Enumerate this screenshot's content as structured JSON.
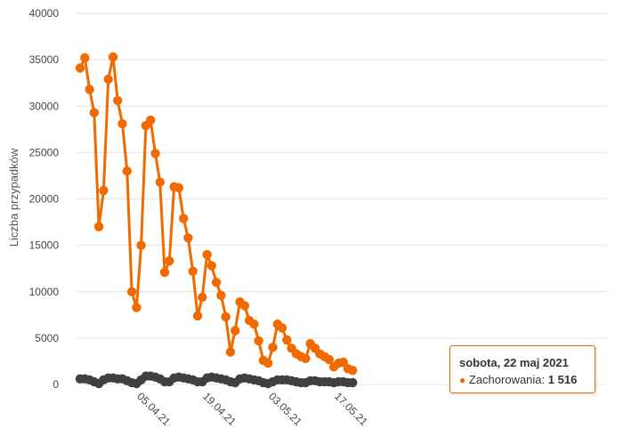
{
  "chart_data": {
    "type": "line",
    "ylabel": "Liczba przypadków",
    "xlabel": "",
    "ylim": [
      0,
      40000
    ],
    "yticks": [
      0,
      5000,
      10000,
      15000,
      20000,
      25000,
      30000,
      35000,
      40000
    ],
    "start_date": "2021-03-24",
    "xtick_labels": [
      {
        "label": "05.04.21",
        "index": 12
      },
      {
        "label": "19.04.21",
        "index": 26
      },
      {
        "label": "03.05.21",
        "index": 40
      },
      {
        "label": "17.05.21",
        "index": 54
      }
    ],
    "grid": true,
    "series": [
      {
        "name": "Zachorowania",
        "color": "#f06a00",
        "values": [
          34100,
          35200,
          31800,
          29300,
          17000,
          20900,
          32900,
          35300,
          30600,
          28100,
          23000,
          10000,
          8300,
          15000,
          27900,
          28500,
          24900,
          21800,
          12100,
          13300,
          21300,
          21200,
          17900,
          15800,
          12200,
          7400,
          9400,
          14000,
          12800,
          11000,
          9600,
          7300,
          3500,
          5800,
          8900,
          8500,
          6900,
          6500,
          4700,
          2600,
          2300,
          4000,
          6500,
          6100,
          4800,
          3900,
          3300,
          3000,
          2800,
          4400,
          3900,
          3300,
          3000,
          2700,
          1900,
          2300,
          2400,
          1700,
          1516
        ]
      },
      {
        "name": "",
        "color": "#404040",
        "values": [
          600,
          600,
          500,
          300,
          100,
          500,
          700,
          700,
          600,
          600,
          400,
          200,
          100,
          500,
          900,
          900,
          800,
          600,
          300,
          300,
          700,
          800,
          700,
          600,
          500,
          300,
          300,
          700,
          800,
          700,
          600,
          500,
          300,
          200,
          600,
          700,
          600,
          500,
          400,
          200,
          100,
          300,
          500,
          500,
          500,
          400,
          300,
          200,
          200,
          400,
          400,
          300,
          300,
          300,
          200,
          300,
          300,
          200,
          200
        ]
      }
    ]
  },
  "tooltip": {
    "date": "sobota, 22 maj 2021",
    "marker": "●",
    "series_label": "Zachorowania:",
    "value": "1 516"
  }
}
